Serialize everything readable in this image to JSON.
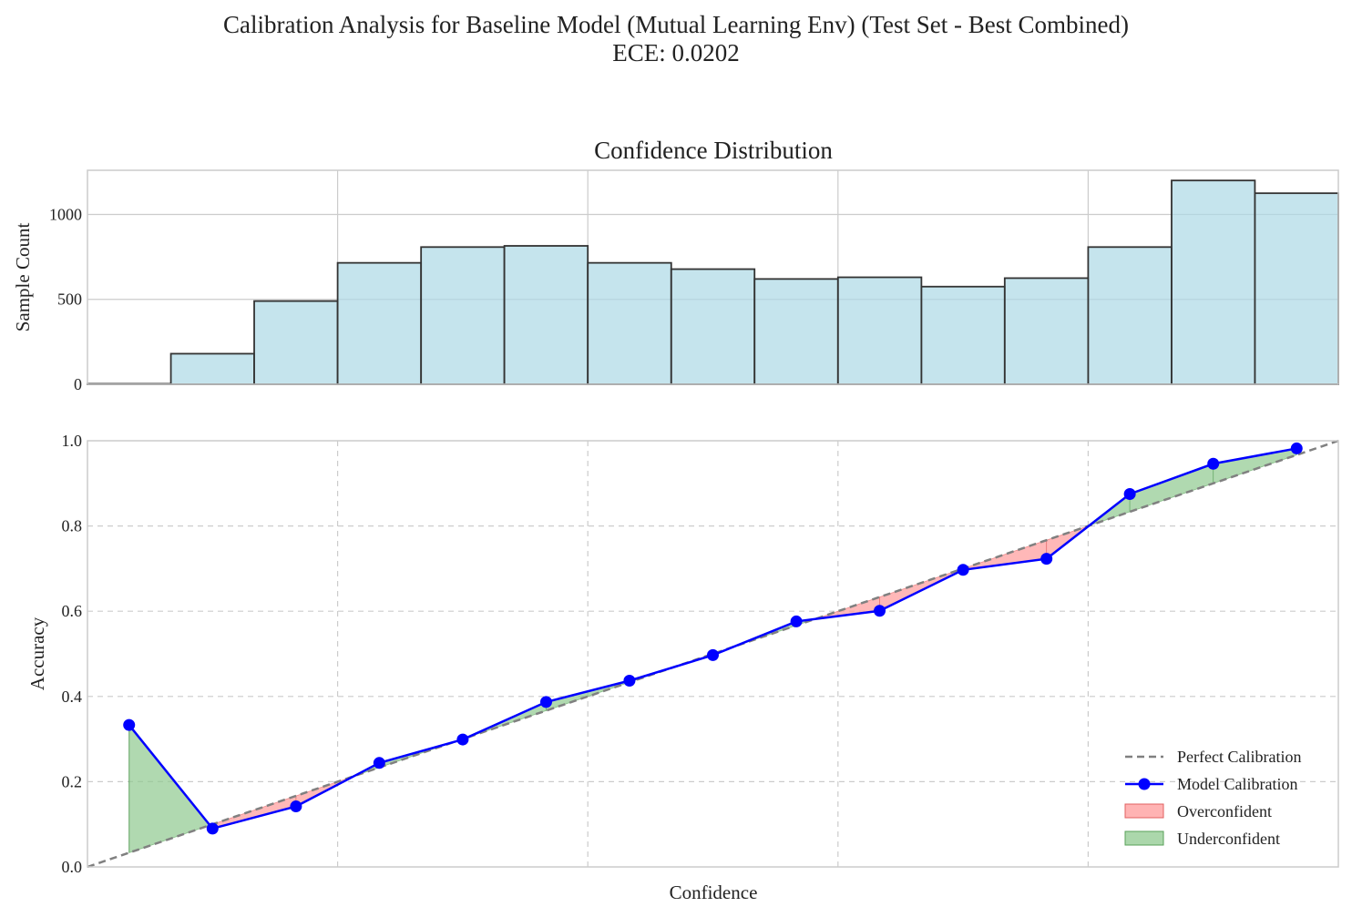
{
  "suptitle": {
    "line1": "Calibration Analysis for Baseline Model (Mutual Learning Env) (Test Set - Best Combined)",
    "line2": "ECE: 0.0202"
  },
  "colors": {
    "hist_fill": "#add8e6",
    "hist_edge": "#333333",
    "model_line": "#0000ff",
    "perfect_line": "#808080",
    "overconfident": "#ff9a9a",
    "underconfident": "#8fc98f",
    "grid": "#cccccc"
  },
  "chart_data": [
    {
      "type": "bar",
      "title": "Confidence Distribution",
      "xlabel": "",
      "ylabel": "Sample Count",
      "bin_edges": [
        0.0,
        0.0667,
        0.1333,
        0.2,
        0.2667,
        0.3333,
        0.4,
        0.4667,
        0.5333,
        0.6,
        0.6667,
        0.7333,
        0.8,
        0.8667,
        0.9333,
        1.0
      ],
      "values": [
        3,
        180,
        490,
        715,
        808,
        815,
        715,
        678,
        620,
        630,
        575,
        625,
        808,
        1200,
        1125
      ],
      "xlim": [
        0,
        1
      ],
      "ylim": [
        0,
        1260
      ],
      "yticks": [
        0,
        500,
        1000
      ],
      "grid": true
    },
    {
      "type": "line",
      "title": "",
      "xlabel": "Confidence",
      "ylabel": "Accuracy",
      "xlim": [
        0,
        1
      ],
      "ylim": [
        0,
        1
      ],
      "yticks": [
        "0.0",
        "0.2",
        "0.4",
        "0.6",
        "0.8",
        "1.0"
      ],
      "grid": true,
      "legend_position": "lower-right",
      "series": [
        {
          "name": "Perfect Calibration",
          "x": [
            0,
            1
          ],
          "y": [
            0,
            1
          ]
        },
        {
          "name": "Model Calibration",
          "x": [
            0.0333,
            0.1,
            0.1667,
            0.2333,
            0.3,
            0.3667,
            0.4333,
            0.5,
            0.5667,
            0.6333,
            0.7,
            0.7667,
            0.8333,
            0.9,
            0.9667
          ],
          "y": [
            0.333,
            0.09,
            0.142,
            0.244,
            0.299,
            0.387,
            0.437,
            0.497,
            0.576,
            0.601,
            0.697,
            0.723,
            0.875,
            0.946,
            0.982
          ]
        }
      ],
      "fill_legend": [
        "Overconfident",
        "Underconfident"
      ]
    }
  ]
}
